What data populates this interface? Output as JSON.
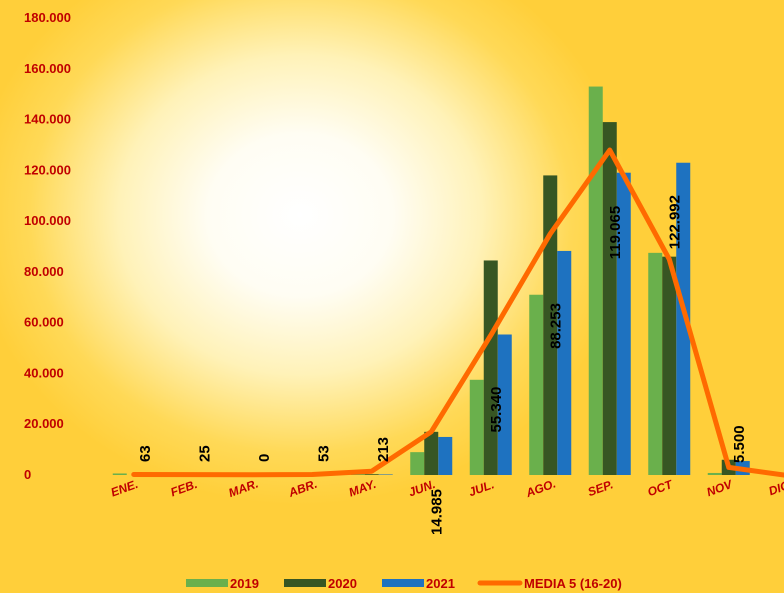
{
  "chart_data": {
    "type": "bar",
    "categories": [
      "ENE.",
      "FEB.",
      "MAR.",
      "ABR.",
      "MAY.",
      "JUN.",
      "JUL.",
      "AGO.",
      "SEP.",
      "OCT",
      "NOV",
      "DIC"
    ],
    "series": [
      {
        "name": "2019",
        "type": "bar",
        "color": "#6ab04c",
        "values": [
          600,
          0,
          0,
          0,
          400,
          9000,
          37500,
          71000,
          153000,
          87500,
          800,
          0
        ]
      },
      {
        "name": "2020",
        "type": "bar",
        "color": "#375623",
        "values": [
          0,
          0,
          0,
          0,
          300,
          17000,
          84500,
          118000,
          139000,
          86000,
          6000,
          0
        ]
      },
      {
        "name": "2021",
        "type": "bar",
        "color": "#1e72c0",
        "values": [
          63,
          25,
          0,
          53,
          213,
          14985,
          55340,
          88253,
          119065,
          122992,
          5500,
          null
        ]
      },
      {
        "name": "MEDIA 5 (16-20)",
        "type": "line",
        "color": "#ff6a00",
        "values": [
          200,
          150,
          100,
          200,
          1500,
          17000,
          55000,
          95000,
          128000,
          85000,
          3000,
          0
        ]
      }
    ],
    "data_labels": [
      {
        "category": "ENE.",
        "text": "63"
      },
      {
        "category": "FEB.",
        "text": "25"
      },
      {
        "category": "MAR.",
        "text": "0"
      },
      {
        "category": "ABR.",
        "text": "53"
      },
      {
        "category": "MAY.",
        "text": "213"
      },
      {
        "category": "JUN.",
        "text": "14.985"
      },
      {
        "category": "JUL.",
        "text": "55.340"
      },
      {
        "category": "AGO.",
        "text": "88.253"
      },
      {
        "category": "SEP.",
        "text": "119.065"
      },
      {
        "category": "OCT",
        "text": "122.992"
      },
      {
        "category": "NOV",
        "text": "5.500"
      }
    ],
    "y_ticks": [
      "0",
      "20.000",
      "40.000",
      "60.000",
      "80.000",
      "100.000",
      "120.000",
      "140.000",
      "160.000",
      "180.000"
    ],
    "ylim": [
      0,
      180000
    ],
    "grid": false,
    "legend_position": "bottom",
    "title": "",
    "xlabel": "",
    "ylabel": ""
  }
}
